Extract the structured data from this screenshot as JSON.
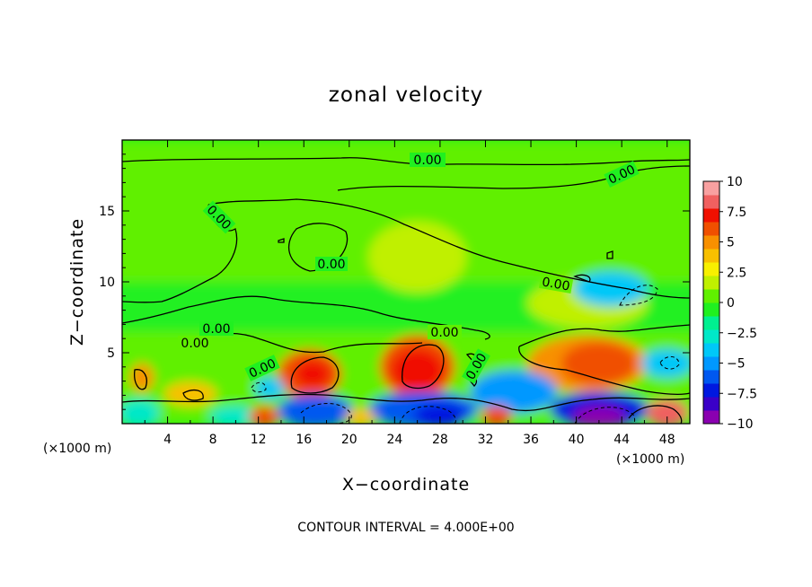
{
  "chart_data": {
    "type": "heatmap",
    "title": "zonal velocity",
    "xlabel": "X−coordinate",
    "ylabel": "Z−coordinate",
    "x_unit": "(×1000 m)",
    "x_unit_right": "(×1000 m)",
    "footer": "CONTOUR INTERVAL = 4.000E+00",
    "xlim": [
      0,
      50
    ],
    "ylim": [
      0,
      20
    ],
    "x_ticks": [
      "4",
      "8",
      "12",
      "16",
      "20",
      "24",
      "28",
      "32",
      "36",
      "40",
      "44",
      "48"
    ],
    "y_ticks": [
      "5",
      "10",
      "15"
    ],
    "colorbar_ticks": [
      "10",
      "7.5",
      "5",
      "2.5",
      "0",
      "−2.5",
      "−5",
      "−7.5",
      "−10"
    ],
    "colorbar_range": [
      -10,
      10
    ],
    "colorbar_colors": [
      "#8a00b0",
      "#3a00c8",
      "#0018e0",
      "#0058f0",
      "#0098ff",
      "#00c8f8",
      "#00e8c8",
      "#00f090",
      "#20f020",
      "#60f000",
      "#c0f000",
      "#f8f000",
      "#f8c000",
      "#f89000",
      "#f05000",
      "#f01000",
      "#f06060",
      "#f8a0a0"
    ],
    "contour_label": "0.00",
    "regions": [
      {
        "x0": 0,
        "x1": 50,
        "z0": 15,
        "z1": 20,
        "value": 0.3
      },
      {
        "x0": 0,
        "x1": 50,
        "z0": 10,
        "z1": 15,
        "value": 0.8
      },
      {
        "x0": 0,
        "x1": 50,
        "z0": 6.5,
        "z1": 10,
        "value": -1.0
      },
      {
        "x0": 0,
        "x1": 50,
        "z0": 0,
        "z1": 6.5,
        "value": 0.5
      },
      {
        "x0": 22,
        "x1": 30,
        "z0": 9.5,
        "z1": 14,
        "value": 1.5
      },
      {
        "x0": 36,
        "x1": 46,
        "z0": 7,
        "z1": 10,
        "value": 2.0
      },
      {
        "x0": 40,
        "x1": 46,
        "z0": 8.5,
        "z1": 10.5,
        "value": -4.0
      },
      {
        "x0": 36,
        "x1": 46,
        "z0": 2.5,
        "z1": 6,
        "value": 5.5
      },
      {
        "x0": 39,
        "x1": 45,
        "z0": 3,
        "z1": 5.5,
        "value": 6.5
      },
      {
        "x0": 23,
        "x1": 29,
        "z0": 2,
        "z1": 6,
        "value": 6.5
      },
      {
        "x0": 24,
        "x1": 28,
        "z0": 2.5,
        "z1": 5,
        "value": 7.5
      },
      {
        "x0": 14,
        "x1": 19,
        "z0": 2,
        "z1": 5,
        "value": 6.0
      },
      {
        "x0": 15.5,
        "x1": 18,
        "z0": 2.8,
        "z1": 4.2,
        "value": 7.5
      },
      {
        "x0": 1,
        "x1": 2.5,
        "z0": 2.5,
        "z1": 4,
        "value": 5.0
      },
      {
        "x0": 4,
        "x1": 8,
        "z0": 1.5,
        "z1": 2.7,
        "value": 4.0
      },
      {
        "x0": 14,
        "x1": 20,
        "z0": 0,
        "z1": 1.8,
        "value": -6.0
      },
      {
        "x0": 22,
        "x1": 31,
        "z0": 0,
        "z1": 2,
        "value": -6.0
      },
      {
        "x0": 26,
        "x1": 30,
        "z0": 0,
        "z1": 1.2,
        "value": -7.5
      },
      {
        "x0": 31,
        "x1": 38,
        "z0": 1,
        "z1": 3.5,
        "value": -5.0
      },
      {
        "x0": 38,
        "x1": 46,
        "z0": 0,
        "z1": 2,
        "value": -7.5
      },
      {
        "x0": 40,
        "x1": 44,
        "z0": 0,
        "z1": 1,
        "value": -9.0
      },
      {
        "x0": 12,
        "x1": 14,
        "z0": 2,
        "z1": 3,
        "value": -4.0
      },
      {
        "x0": 46,
        "x1": 50,
        "z0": 3.5,
        "z1": 5,
        "value": -4.0
      },
      {
        "x0": 0,
        "x1": 3,
        "z0": 0,
        "z1": 1.5,
        "value": -3.0
      },
      {
        "x0": 8,
        "x1": 12,
        "z0": 0,
        "z1": 1,
        "value": -3.0
      },
      {
        "x0": 11.5,
        "x1": 13.5,
        "z0": 0,
        "z1": 1,
        "value": 6.5
      },
      {
        "x0": 32,
        "x1": 34,
        "z0": 0,
        "z1": 1,
        "value": 6.5
      },
      {
        "x0": 46.5,
        "x1": 49.5,
        "z0": 0,
        "z1": 1.5,
        "value": 8.0
      },
      {
        "x0": 20,
        "x1": 22,
        "z0": 0,
        "z1": 0.8,
        "value": 4.0
      }
    ]
  }
}
